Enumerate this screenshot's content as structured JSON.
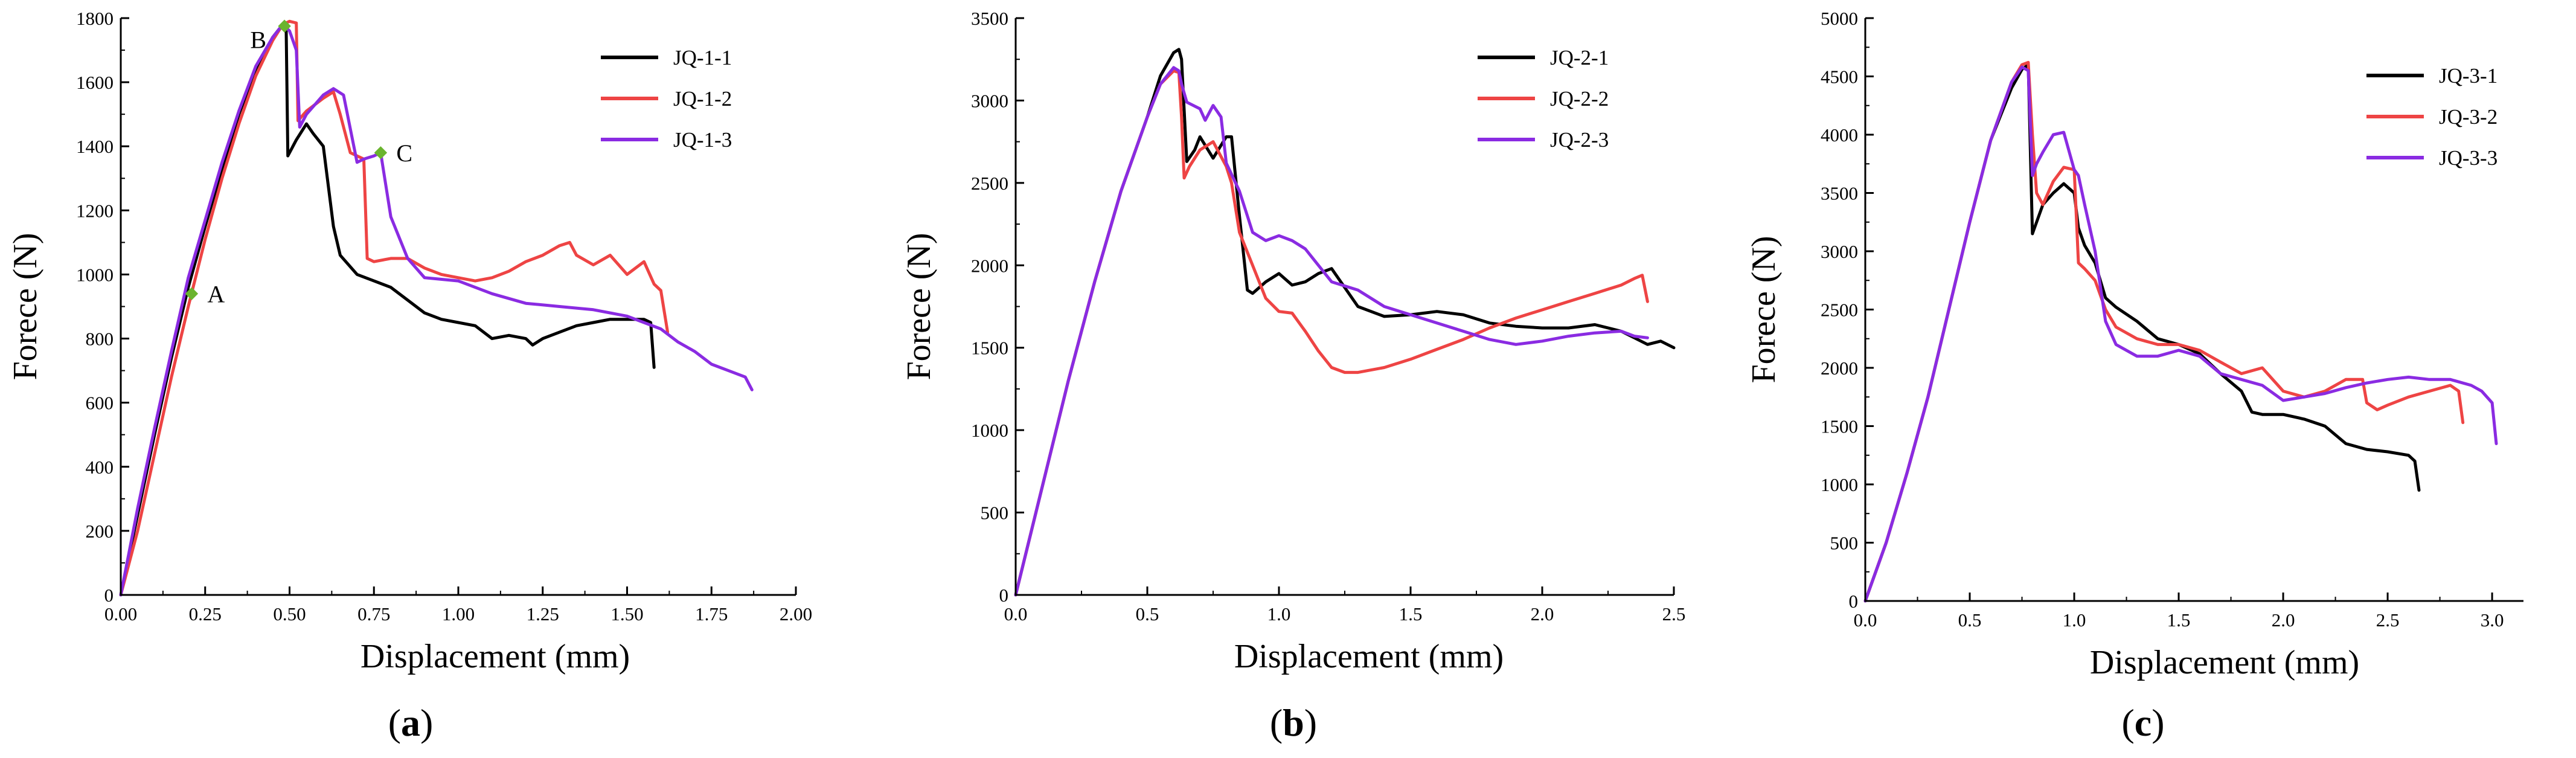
{
  "chart_data": [
    {
      "type": "line",
      "panel_label": "a",
      "xlabel": "Displacement (mm)",
      "ylabel": "Forece (N)",
      "xlim": [
        0,
        2.0
      ],
      "ylim": [
        0,
        1800
      ],
      "xticks": [
        0.0,
        0.25,
        0.5,
        0.75,
        1.0,
        1.25,
        1.5,
        1.75,
        2.0
      ],
      "xtick_labels": [
        "0.00",
        "0.25",
        "0.50",
        "0.75",
        "1.00",
        "1.25",
        "1.50",
        "1.75",
        "2.00"
      ],
      "yticks": [
        0,
        200,
        400,
        600,
        800,
        1000,
        1200,
        1400,
        1600,
        1800
      ],
      "ytick_labels": [
        "0",
        "200",
        "400",
        "600",
        "800",
        "1000",
        "1200",
        "1400",
        "1600",
        "1800"
      ],
      "legend_position": "top-right",
      "series": [
        {
          "name": "JQ-1-1",
          "color": "#000000",
          "x": [
            0,
            0.05,
            0.1,
            0.15,
            0.2,
            0.25,
            0.3,
            0.35,
            0.4,
            0.45,
            0.48,
            0.49,
            0.495,
            0.5,
            0.52,
            0.55,
            0.57,
            0.6,
            0.63,
            0.65,
            0.7,
            0.75,
            0.8,
            0.85,
            0.9,
            0.95,
            1.0,
            1.05,
            1.1,
            1.15,
            1.2,
            1.22,
            1.25,
            1.3,
            1.35,
            1.4,
            1.45,
            1.5,
            1.55,
            1.57,
            1.58
          ],
          "y": [
            0,
            250,
            500,
            740,
            960,
            1150,
            1330,
            1500,
            1640,
            1740,
            1780,
            1770,
            1370,
            1380,
            1420,
            1470,
            1440,
            1400,
            1150,
            1060,
            1000,
            980,
            960,
            920,
            880,
            860,
            850,
            840,
            800,
            810,
            800,
            780,
            800,
            820,
            840,
            850,
            860,
            860,
            860,
            850,
            710
          ]
        },
        {
          "name": "JQ-1-2",
          "color": "#ee4444",
          "x": [
            0,
            0.05,
            0.1,
            0.15,
            0.2,
            0.25,
            0.3,
            0.35,
            0.4,
            0.45,
            0.48,
            0.5,
            0.52,
            0.525,
            0.55,
            0.6,
            0.63,
            0.65,
            0.68,
            0.7,
            0.72,
            0.73,
            0.75,
            0.8,
            0.85,
            0.9,
            0.95,
            1.0,
            1.05,
            1.1,
            1.15,
            1.2,
            1.25,
            1.3,
            1.33,
            1.35,
            1.4,
            1.45,
            1.5,
            1.55,
            1.58,
            1.6,
            1.62
          ],
          "y": [
            0,
            200,
            440,
            680,
            900,
            1110,
            1300,
            1470,
            1620,
            1730,
            1780,
            1790,
            1785,
            1480,
            1510,
            1550,
            1570,
            1500,
            1380,
            1370,
            1360,
            1050,
            1040,
            1050,
            1050,
            1020,
            1000,
            990,
            980,
            990,
            1010,
            1040,
            1060,
            1090,
            1100,
            1060,
            1030,
            1060,
            1000,
            1040,
            970,
            950,
            820
          ]
        },
        {
          "name": "JQ-1-3",
          "color": "#8a2be2",
          "x": [
            0,
            0.05,
            0.1,
            0.15,
            0.2,
            0.25,
            0.3,
            0.35,
            0.4,
            0.45,
            0.48,
            0.5,
            0.52,
            0.53,
            0.55,
            0.6,
            0.63,
            0.66,
            0.7,
            0.72,
            0.75,
            0.77,
            0.8,
            0.85,
            0.9,
            1.0,
            1.1,
            1.2,
            1.3,
            1.4,
            1.5,
            1.6,
            1.65,
            1.7,
            1.75,
            1.8,
            1.85,
            1.87
          ],
          "y": [
            0,
            270,
            520,
            760,
            990,
            1170,
            1350,
            1510,
            1650,
            1740,
            1780,
            1760,
            1700,
            1460,
            1500,
            1560,
            1580,
            1560,
            1350,
            1360,
            1370,
            1380,
            1180,
            1050,
            990,
            980,
            940,
            910,
            900,
            890,
            870,
            830,
            790,
            760,
            720,
            700,
            680,
            640
          ]
        }
      ],
      "markers": [
        {
          "label": "A",
          "x": 0.21,
          "y": 940,
          "color": "#6ab42e"
        },
        {
          "label": "B",
          "x": 0.485,
          "y": 1775,
          "color": "#6ab42e"
        },
        {
          "label": "C",
          "x": 0.77,
          "y": 1380,
          "color": "#6ab42e"
        }
      ]
    },
    {
      "type": "line",
      "panel_label": "b",
      "xlabel": "Displacement (mm)",
      "ylabel": "Forece (N)",
      "xlim": [
        0,
        2.5
      ],
      "ylim": [
        0,
        3500
      ],
      "xticks": [
        0.0,
        0.5,
        1.0,
        1.5,
        2.0,
        2.5
      ],
      "xtick_labels": [
        "0.0",
        "0.5",
        "1.0",
        "1.5",
        "2.0",
        "2.5"
      ],
      "yticks": [
        0,
        500,
        1000,
        1500,
        2000,
        2500,
        3000,
        3500
      ],
      "ytick_labels": [
        "0",
        "500",
        "1000",
        "1500",
        "2000",
        "2500",
        "3000",
        "3500"
      ],
      "legend_position": "top-right",
      "series": [
        {
          "name": "JQ-2-1",
          "color": "#000000",
          "x": [
            0,
            0.1,
            0.2,
            0.3,
            0.4,
            0.5,
            0.55,
            0.6,
            0.62,
            0.63,
            0.65,
            0.68,
            0.7,
            0.75,
            0.8,
            0.82,
            0.85,
            0.88,
            0.9,
            0.95,
            1.0,
            1.05,
            1.1,
            1.15,
            1.2,
            1.3,
            1.4,
            1.5,
            1.6,
            1.7,
            1.8,
            1.9,
            2.0,
            2.1,
            2.2,
            2.3,
            2.35,
            2.4,
            2.45,
            2.5
          ],
          "y": [
            0,
            650,
            1300,
            1900,
            2450,
            2900,
            3150,
            3290,
            3310,
            3250,
            2630,
            2700,
            2780,
            2650,
            2780,
            2780,
            2300,
            1850,
            1830,
            1900,
            1950,
            1880,
            1900,
            1950,
            1980,
            1750,
            1690,
            1700,
            1720,
            1700,
            1650,
            1630,
            1620,
            1620,
            1640,
            1600,
            1560,
            1520,
            1540,
            1500
          ]
        },
        {
          "name": "JQ-2-2",
          "color": "#ee4444",
          "x": [
            0,
            0.1,
            0.2,
            0.3,
            0.4,
            0.5,
            0.55,
            0.6,
            0.62,
            0.63,
            0.64,
            0.66,
            0.7,
            0.75,
            0.8,
            0.82,
            0.85,
            0.9,
            0.95,
            1.0,
            1.05,
            1.1,
            1.15,
            1.2,
            1.25,
            1.3,
            1.4,
            1.5,
            1.6,
            1.7,
            1.8,
            1.9,
            2.0,
            2.1,
            2.2,
            2.3,
            2.35,
            2.38,
            2.4
          ],
          "y": [
            0,
            650,
            1300,
            1900,
            2450,
            2900,
            3100,
            3180,
            3170,
            2900,
            2530,
            2600,
            2700,
            2750,
            2600,
            2500,
            2200,
            2000,
            1800,
            1720,
            1710,
            1600,
            1480,
            1380,
            1350,
            1350,
            1380,
            1430,
            1490,
            1550,
            1620,
            1680,
            1730,
            1780,
            1830,
            1880,
            1920,
            1940,
            1780
          ]
        },
        {
          "name": "JQ-2-3",
          "color": "#8a2be2",
          "x": [
            0,
            0.1,
            0.2,
            0.3,
            0.4,
            0.5,
            0.55,
            0.6,
            0.62,
            0.63,
            0.65,
            0.7,
            0.72,
            0.75,
            0.78,
            0.8,
            0.85,
            0.88,
            0.9,
            0.95,
            1.0,
            1.05,
            1.1,
            1.15,
            1.2,
            1.3,
            1.4,
            1.5,
            1.6,
            1.7,
            1.8,
            1.9,
            2.0,
            2.1,
            2.2,
            2.3,
            2.35,
            2.4
          ],
          "y": [
            0,
            650,
            1300,
            1900,
            2450,
            2900,
            3100,
            3200,
            3180,
            3100,
            2990,
            2950,
            2880,
            2970,
            2900,
            2620,
            2450,
            2300,
            2200,
            2150,
            2180,
            2150,
            2100,
            2000,
            1900,
            1850,
            1750,
            1700,
            1650,
            1600,
            1550,
            1520,
            1540,
            1570,
            1590,
            1600,
            1570,
            1560
          ]
        }
      ],
      "markers": []
    },
    {
      "type": "line",
      "panel_label": "c",
      "xlabel": "Displacement (mm)",
      "ylabel": "Forece (N)",
      "xlim": [
        0,
        3.15
      ],
      "ylim": [
        0,
        5000
      ],
      "xticks": [
        0.0,
        0.5,
        1.0,
        1.5,
        2.0,
        2.5,
        3.0
      ],
      "xtick_labels": [
        "0.0",
        "0.5",
        "1.0",
        "1.5",
        "2.0",
        "2.5",
        "3.0"
      ],
      "yticks": [
        0,
        500,
        1000,
        1500,
        2000,
        2500,
        3000,
        3500,
        4000,
        4500,
        5000
      ],
      "ytick_labels": [
        "0",
        "500",
        "1000",
        "1500",
        "2000",
        "2500",
        "3000",
        "3500",
        "4000",
        "4500",
        "5000"
      ],
      "legend_position": "top-right",
      "series": [
        {
          "name": "JQ-3-1",
          "color": "#000000",
          "x": [
            0,
            0.1,
            0.2,
            0.3,
            0.4,
            0.5,
            0.6,
            0.7,
            0.75,
            0.78,
            0.8,
            0.82,
            0.85,
            0.9,
            0.95,
            1.0,
            1.02,
            1.05,
            1.1,
            1.15,
            1.2,
            1.3,
            1.4,
            1.5,
            1.6,
            1.7,
            1.8,
            1.85,
            1.9,
            2.0,
            2.1,
            2.2,
            2.3,
            2.4,
            2.5,
            2.6,
            2.63,
            2.65
          ],
          "y": [
            0,
            500,
            1100,
            1750,
            2500,
            3250,
            3950,
            4400,
            4560,
            4600,
            3150,
            3250,
            3400,
            3500,
            3580,
            3500,
            3200,
            3050,
            2900,
            2600,
            2520,
            2400,
            2250,
            2200,
            2120,
            1950,
            1800,
            1620,
            1600,
            1600,
            1560,
            1500,
            1350,
            1300,
            1280,
            1250,
            1200,
            950
          ]
        },
        {
          "name": "JQ-3-2",
          "color": "#ee4444",
          "x": [
            0,
            0.1,
            0.2,
            0.3,
            0.4,
            0.5,
            0.6,
            0.7,
            0.75,
            0.78,
            0.8,
            0.82,
            0.85,
            0.9,
            0.95,
            1.0,
            1.02,
            1.05,
            1.1,
            1.15,
            1.2,
            1.3,
            1.4,
            1.5,
            1.6,
            1.7,
            1.8,
            1.9,
            2.0,
            2.1,
            2.2,
            2.3,
            2.38,
            2.4,
            2.45,
            2.5,
            2.6,
            2.7,
            2.8,
            2.84,
            2.86
          ],
          "y": [
            0,
            500,
            1100,
            1750,
            2500,
            3250,
            3950,
            4450,
            4600,
            4620,
            4000,
            3500,
            3400,
            3600,
            3720,
            3700,
            2900,
            2850,
            2750,
            2500,
            2350,
            2250,
            2200,
            2200,
            2150,
            2050,
            1950,
            2000,
            1800,
            1750,
            1800,
            1900,
            1900,
            1700,
            1640,
            1680,
            1750,
            1800,
            1850,
            1800,
            1530
          ]
        },
        {
          "name": "JQ-3-3",
          "color": "#8a2be2",
          "x": [
            0,
            0.1,
            0.2,
            0.3,
            0.4,
            0.5,
            0.6,
            0.7,
            0.75,
            0.78,
            0.8,
            0.82,
            0.85,
            0.9,
            0.95,
            1.0,
            1.02,
            1.05,
            1.1,
            1.15,
            1.2,
            1.3,
            1.4,
            1.5,
            1.6,
            1.7,
            1.8,
            1.9,
            2.0,
            2.1,
            2.2,
            2.3,
            2.4,
            2.5,
            2.6,
            2.7,
            2.8,
            2.9,
            2.95,
            3.0,
            3.02
          ],
          "y": [
            0,
            500,
            1100,
            1750,
            2500,
            3250,
            3950,
            4450,
            4580,
            4550,
            3650,
            3750,
            3850,
            4000,
            4020,
            3700,
            3650,
            3400,
            3000,
            2400,
            2200,
            2100,
            2100,
            2150,
            2100,
            1950,
            1900,
            1850,
            1720,
            1750,
            1780,
            1830,
            1870,
            1900,
            1920,
            1900,
            1900,
            1850,
            1800,
            1700,
            1350
          ]
        }
      ],
      "markers": []
    }
  ]
}
